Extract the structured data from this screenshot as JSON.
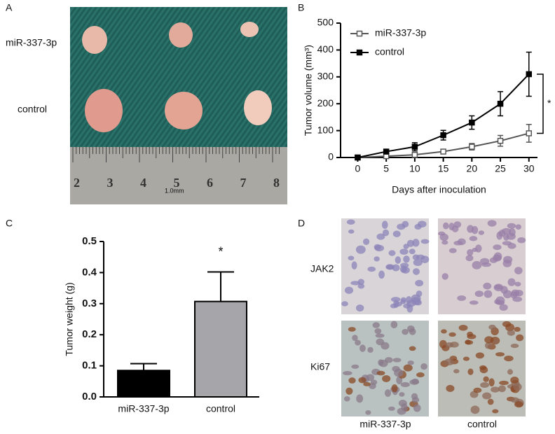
{
  "chart_data": [
    {
      "type": "line",
      "panel": "B",
      "xlabel": "Days after inoculation",
      "ylabel": "Tumor volume (mm³)",
      "x": [
        0,
        5,
        10,
        15,
        20,
        25,
        30
      ],
      "series": [
        {
          "name": "miR-337-3p",
          "color": "#555555",
          "marker": "open-square",
          "values": [
            0,
            5,
            10,
            22,
            40,
            62,
            90
          ],
          "errors": [
            2,
            5,
            10,
            5,
            12,
            20,
            33
          ]
        },
        {
          "name": "control",
          "color": "#000000",
          "marker": "filled-square",
          "values": [
            0,
            22,
            40,
            83,
            130,
            200,
            310
          ],
          "errors": [
            3,
            8,
            15,
            18,
            25,
            45,
            82
          ]
        }
      ],
      "xlim": [
        -3,
        31.5
      ],
      "xticks": [
        0,
        5,
        10,
        15,
        20,
        25,
        30
      ],
      "ylim": [
        0,
        500
      ],
      "yticks": [
        0,
        100,
        200,
        300,
        400,
        500
      ],
      "annotation": "*",
      "legend": "upper-left"
    },
    {
      "type": "bar",
      "panel": "C",
      "ylabel": "Tumor weight (g)",
      "categories": [
        "miR-337-3p",
        "control"
      ],
      "values": [
        0.085,
        0.307
      ],
      "errors": [
        0.022,
        0.095
      ],
      "colors": [
        "#000000",
        "#a6a6aa"
      ],
      "ylim": [
        0,
        0.5
      ],
      "yticks": [
        {
          "value": 0,
          "label": "0.0"
        },
        0.1,
        0.2,
        0.3,
        0.4,
        0.5
      ],
      "annotation": "*"
    }
  ],
  "panel_a": {
    "panel": "A",
    "row_labels": [
      "miR-337-3p",
      "control"
    ],
    "ruler_labels": [
      "2",
      "3",
      "4",
      "5",
      "6",
      "7",
      "8"
    ],
    "ruler_unit": "1.0mm"
  },
  "panel_d": {
    "panel": "D",
    "row_labels": [
      "JAK2",
      "Ki67"
    ],
    "column_labels": [
      "miR-337-3p",
      "control"
    ]
  }
}
